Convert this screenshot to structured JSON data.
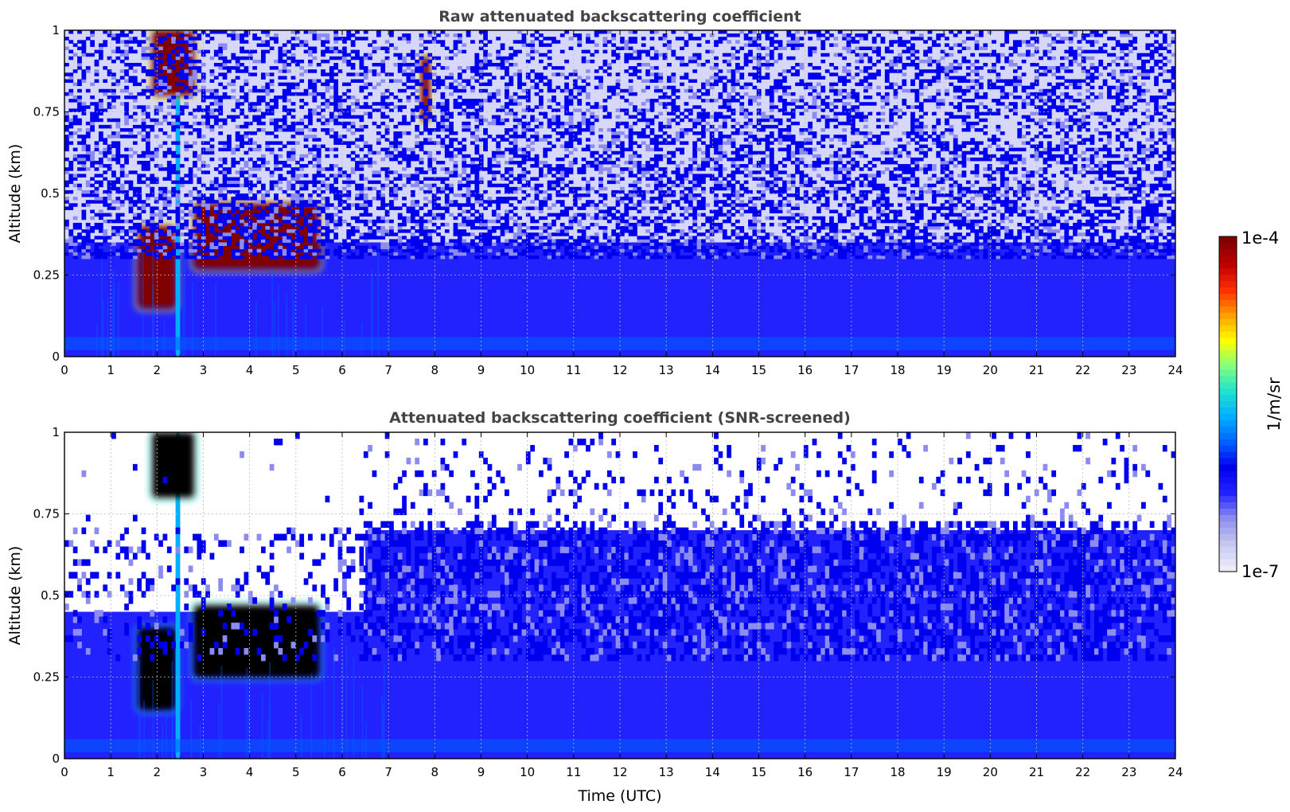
{
  "chart_data": [
    {
      "type": "heatmap",
      "title": "Raw attenuated backscattering coefficient",
      "xlabel": "",
      "ylabel": "Altitude (km)",
      "xlim": [
        0,
        24
      ],
      "ylim": [
        0,
        1
      ],
      "x_ticks": [
        "0",
        "1",
        "2",
        "3",
        "4",
        "5",
        "6",
        "7",
        "8",
        "9",
        "10",
        "11",
        "12",
        "13",
        "14",
        "15",
        "16",
        "17",
        "18",
        "19",
        "20",
        "21",
        "22",
        "23",
        "24"
      ],
      "y_ticks": [
        "0",
        "0.25",
        "0.5",
        "0.75",
        "1"
      ],
      "grid": true,
      "features": [
        {
          "x_range": [
            0,
            24
          ],
          "y_range": [
            0,
            0.35
          ],
          "level": "moderate"
        },
        {
          "x_range": [
            0,
            24
          ],
          "y_range": [
            0.35,
            1
          ],
          "level": "noise"
        },
        {
          "x_range": [
            1.6,
            2.4
          ],
          "y_range": [
            0.15,
            0.4
          ],
          "level": "saturated"
        },
        {
          "x_range": [
            2.8,
            5.5
          ],
          "y_range": [
            0.27,
            0.47
          ],
          "level": "saturated"
        },
        {
          "x_range": [
            2.4,
            2.5
          ],
          "y_range": [
            0,
            1
          ],
          "level": "high"
        },
        {
          "x_range": [
            1.9,
            2.8
          ],
          "y_range": [
            0.8,
            1
          ],
          "level": "saturated"
        },
        {
          "x_range": [
            7.7,
            7.9
          ],
          "y_range": [
            0.72,
            0.92
          ],
          "level": "saturated"
        }
      ]
    },
    {
      "type": "heatmap",
      "title": "Attenuated backscattering coefficient (SNR-screened)",
      "xlabel": "Time (UTC)",
      "ylabel": "Altitude (km)",
      "xlim": [
        0,
        24
      ],
      "ylim": [
        0,
        1
      ],
      "x_ticks": [
        "0",
        "1",
        "2",
        "3",
        "4",
        "5",
        "6",
        "7",
        "8",
        "9",
        "10",
        "11",
        "12",
        "13",
        "14",
        "15",
        "16",
        "17",
        "18",
        "19",
        "20",
        "21",
        "22",
        "23",
        "24"
      ],
      "y_ticks": [
        "0",
        "0.25",
        "0.5",
        "0.75",
        "1"
      ],
      "grid": true,
      "features": [
        {
          "x_range": [
            0,
            24
          ],
          "y_range": [
            0,
            0.45
          ],
          "level": "moderate"
        },
        {
          "x_range": [
            6.5,
            24
          ],
          "y_range": [
            0.45,
            0.7
          ],
          "level": "moderate"
        },
        {
          "x_range": [
            1.6,
            2.4
          ],
          "y_range": [
            0.15,
            0.4
          ],
          "level": "masked"
        },
        {
          "x_range": [
            2.8,
            5.5
          ],
          "y_range": [
            0.25,
            0.47
          ],
          "level": "masked"
        },
        {
          "x_range": [
            2.4,
            2.5
          ],
          "y_range": [
            0,
            1
          ],
          "level": "high"
        },
        {
          "x_range": [
            1.9,
            2.8
          ],
          "y_range": [
            0.8,
            1
          ],
          "level": "masked"
        }
      ]
    }
  ],
  "colorbar": {
    "label": "1/m/sr",
    "max_label": "1e-4",
    "min_label": "1e-7",
    "colormap": [
      "#ececf8",
      "#c6c6f0",
      "#8c8cf0",
      "#2222ff",
      "#0000ee",
      "#0060ff",
      "#00b0ff",
      "#20e0d0",
      "#80ff80",
      "#ffff00",
      "#ffa000",
      "#ff3000",
      "#c00000",
      "#800000"
    ]
  },
  "colors": {
    "frame": "#000000",
    "grid": "#b8b8b8",
    "title": "#444444",
    "masked": "#000000",
    "background": "#ffffff"
  }
}
